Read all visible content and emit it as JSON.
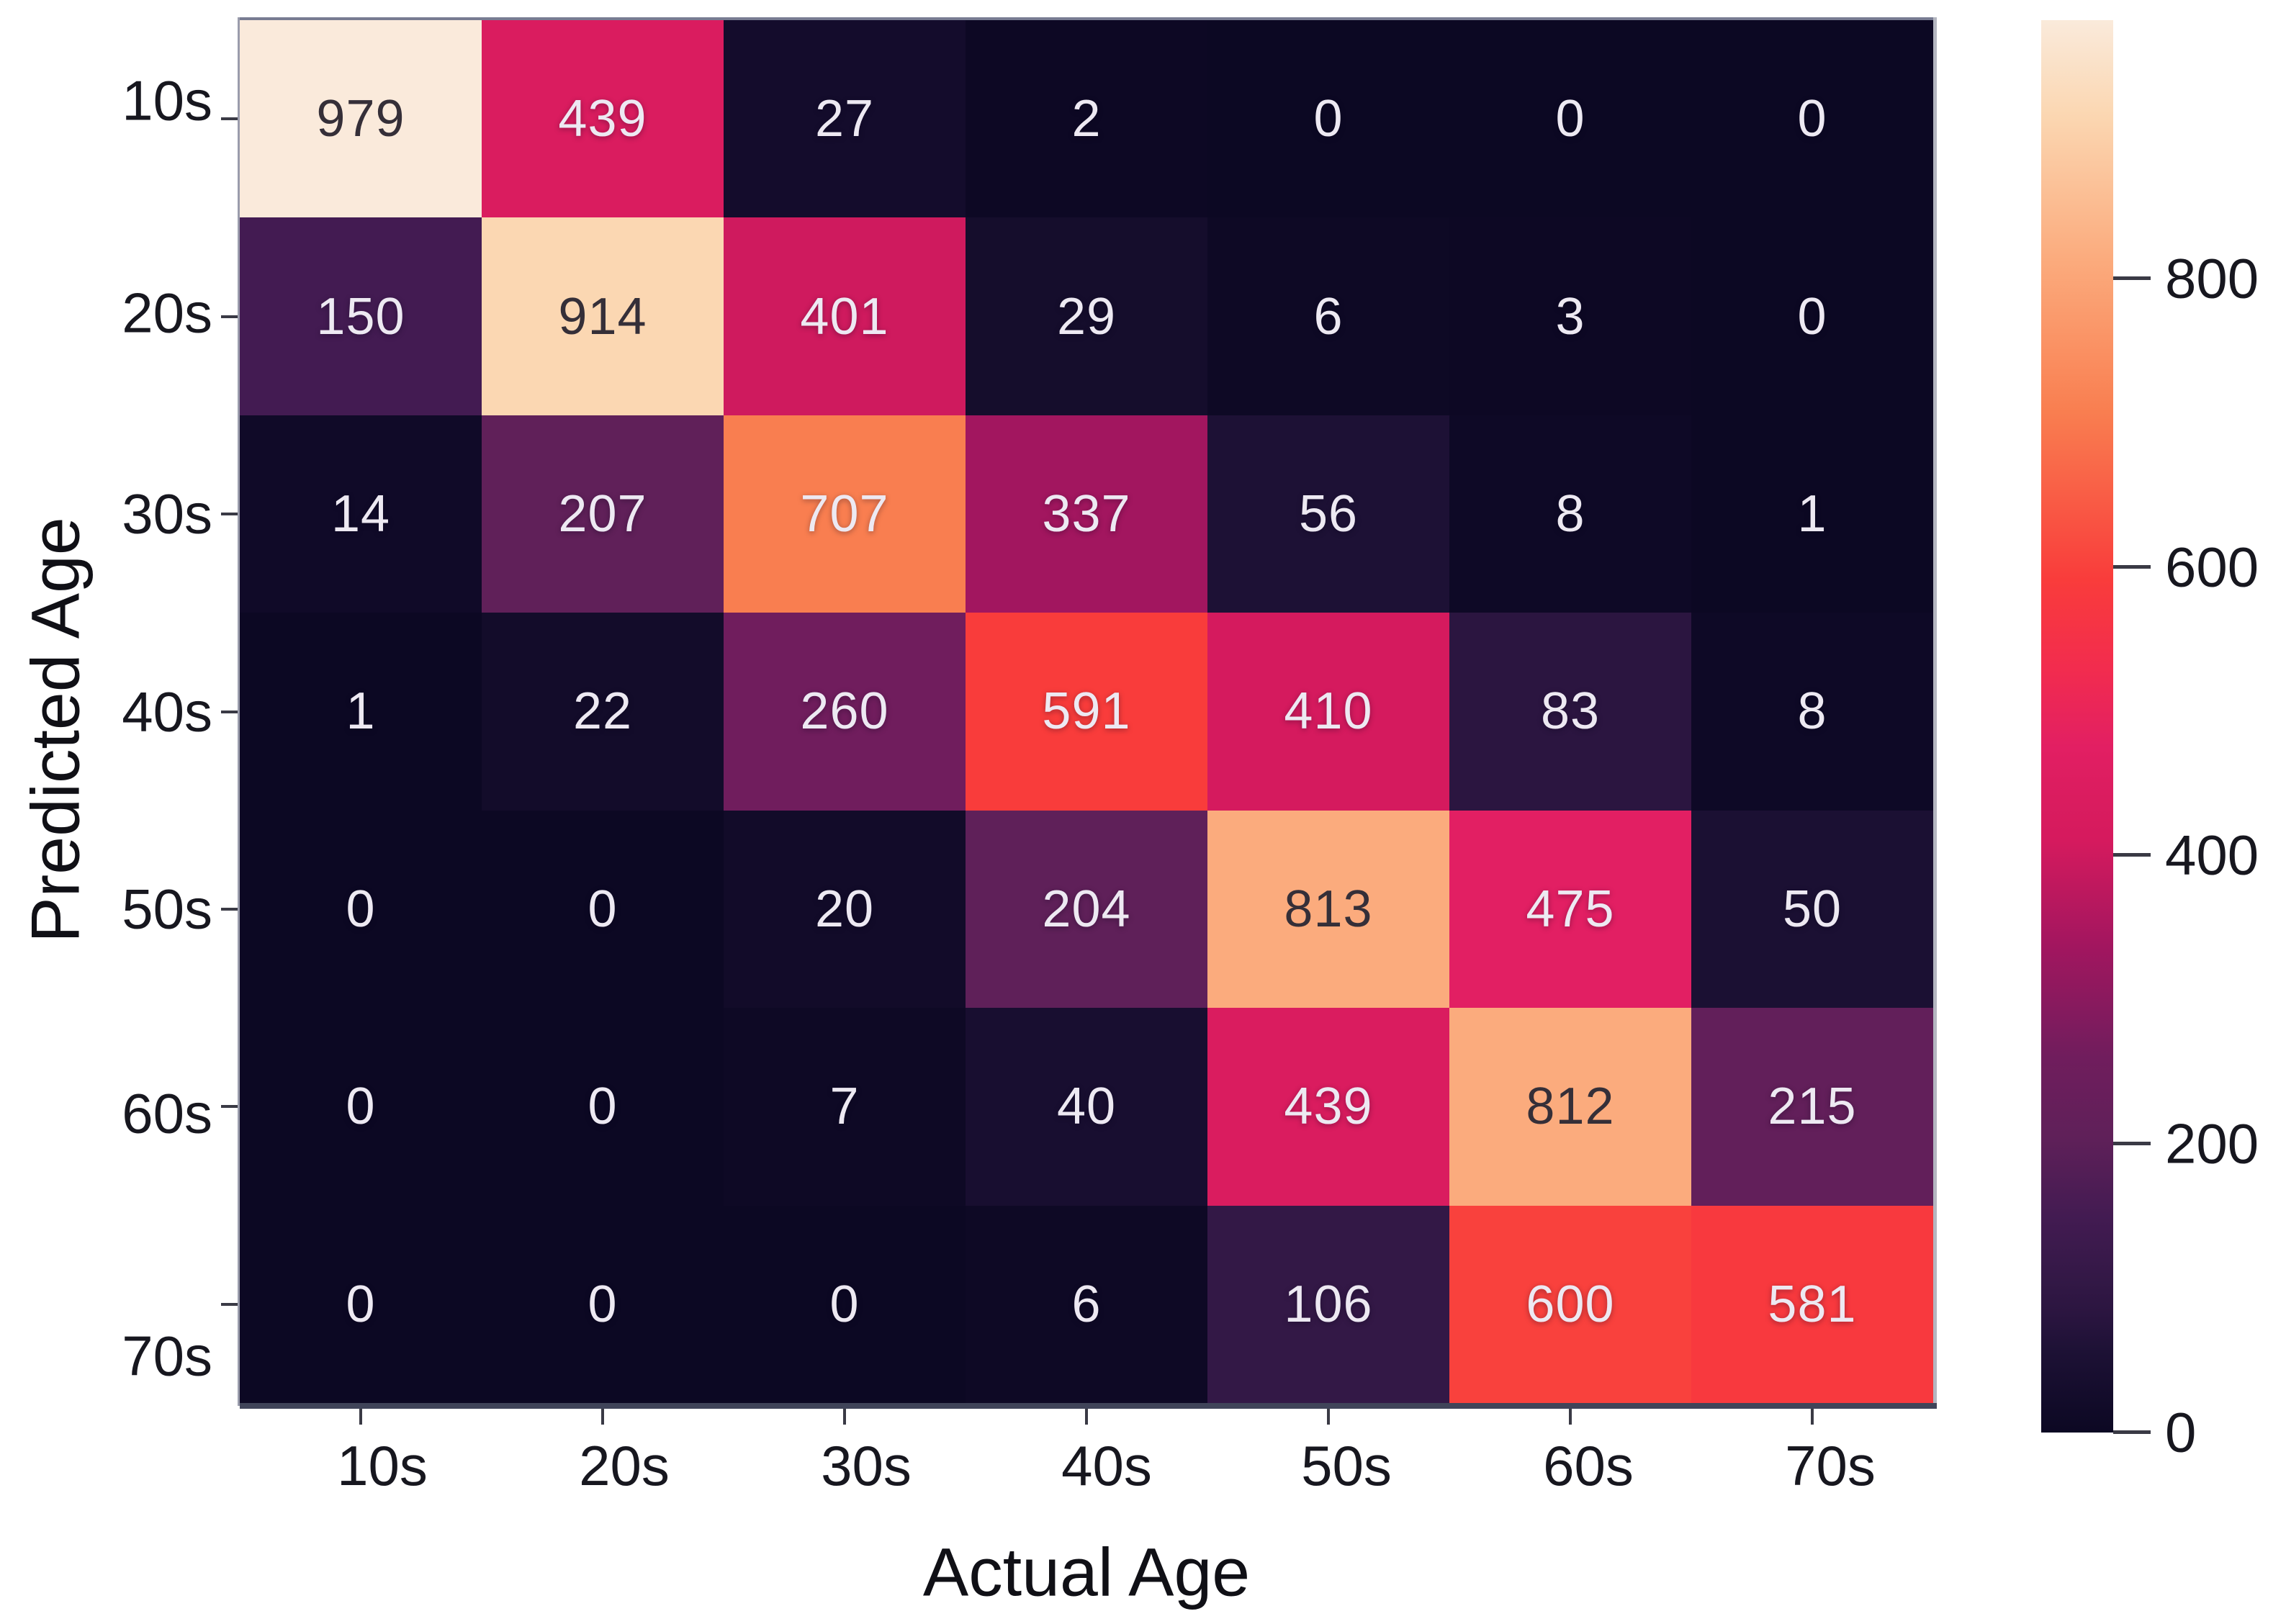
{
  "chart_data": {
    "type": "heatmap",
    "title": "",
    "xlabel": "Actual Age",
    "ylabel": "Predicted Age",
    "categories_x": [
      "10s",
      "20s",
      "30s",
      "40s",
      "50s",
      "60s",
      "70s"
    ],
    "categories_y": [
      "10s",
      "20s",
      "30s",
      "40s",
      "50s",
      "60s",
      "70s"
    ],
    "matrix": [
      [
        979,
        439,
        27,
        2,
        0,
        0,
        0
      ],
      [
        150,
        914,
        401,
        29,
        6,
        3,
        0
      ],
      [
        14,
        207,
        707,
        337,
        56,
        8,
        1
      ],
      [
        1,
        22,
        260,
        591,
        410,
        83,
        8
      ],
      [
        0,
        0,
        20,
        204,
        813,
        475,
        50
      ],
      [
        0,
        0,
        7,
        40,
        439,
        812,
        215
      ],
      [
        0,
        0,
        0,
        6,
        106,
        600,
        581
      ]
    ],
    "annotations_shown": true,
    "grid": false,
    "legend_position": "colorbar-right",
    "colorbar": {
      "vmin": 0,
      "vmax": 979,
      "tick_values": [
        800,
        600,
        400,
        200,
        0
      ],
      "tick_labels": [
        "800",
        "600",
        "400",
        "200",
        "0"
      ]
    },
    "colors": {
      "background": "#FFFFFF",
      "annotation_light": "#EDE9F2",
      "annotation_dark": "#352F38",
      "colormap_name": "rocket",
      "colormap_stops": [
        [
          0,
          "#0C0823"
        ],
        [
          56,
          "#1D1135"
        ],
        [
          83,
          "#2B1540"
        ],
        [
          106,
          "#331846"
        ],
        [
          150,
          "#431B52"
        ],
        [
          204,
          "#5F2059"
        ],
        [
          260,
          "#701D5D"
        ],
        [
          337,
          "#A2165F"
        ],
        [
          410,
          "#D51A5E"
        ],
        [
          439,
          "#DA1C5F"
        ],
        [
          475,
          "#E21F63"
        ],
        [
          530,
          "#F22C4E"
        ],
        [
          591,
          "#F93C3B"
        ],
        [
          707,
          "#F97E50"
        ],
        [
          813,
          "#FBAB7D"
        ],
        [
          914,
          "#FBD7B2"
        ],
        [
          979,
          "#FAEADB"
        ]
      ]
    }
  }
}
